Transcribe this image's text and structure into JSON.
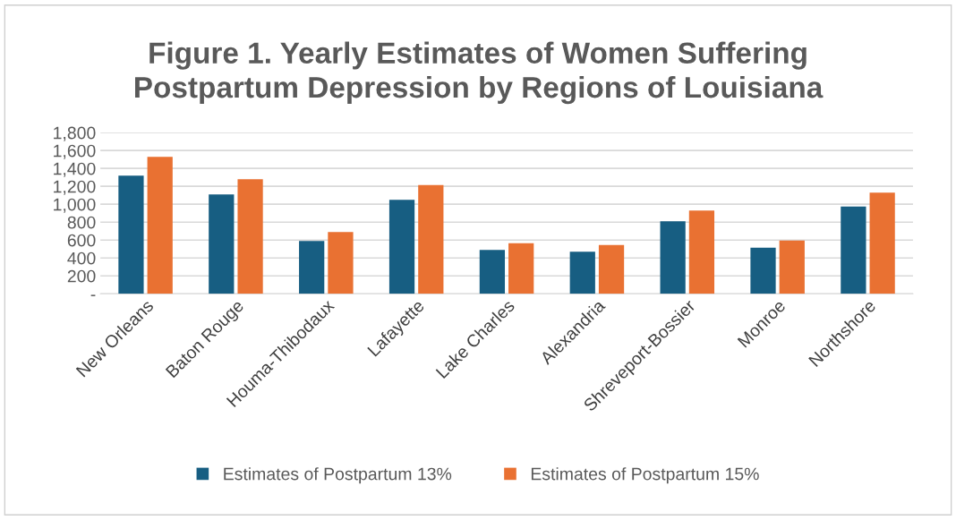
{
  "chart_data": {
    "type": "bar",
    "title": "Figure 1. Yearly Estimates of Women Suffering\nPostpartum Depression by Regions of Louisiana",
    "categories": [
      "New Orleans",
      "Baton Rouge",
      "Houma-Thibodaux",
      "Lafayette",
      "Lake Charles",
      "Alexandria",
      "Shreveport-Bossier",
      "Monroe",
      "Northshore"
    ],
    "series": [
      {
        "name": "Estimates of Postpartum 13%",
        "color": "#175e82",
        "values": [
          1320,
          1110,
          590,
          1050,
          490,
          470,
          810,
          515,
          975
        ]
      },
      {
        "name": "Estimates of Postpartum 15%",
        "color": "#e97132",
        "values": [
          1530,
          1280,
          690,
          1215,
          565,
          545,
          930,
          595,
          1130
        ]
      }
    ],
    "ylim": [
      0,
      1800
    ],
    "yticks": [
      {
        "value": 0,
        "label": "-"
      },
      {
        "value": 200,
        "label": "200"
      },
      {
        "value": 400,
        "label": "400"
      },
      {
        "value": 600,
        "label": "600"
      },
      {
        "value": 800,
        "label": "800"
      },
      {
        "value": 1000,
        "label": "1,000"
      },
      {
        "value": 1200,
        "label": "1,200"
      },
      {
        "value": 1400,
        "label": "1,400"
      },
      {
        "value": 1600,
        "label": "1,600"
      },
      {
        "value": 1800,
        "label": "1,800"
      }
    ],
    "grid": "y",
    "legend": "bottom"
  }
}
